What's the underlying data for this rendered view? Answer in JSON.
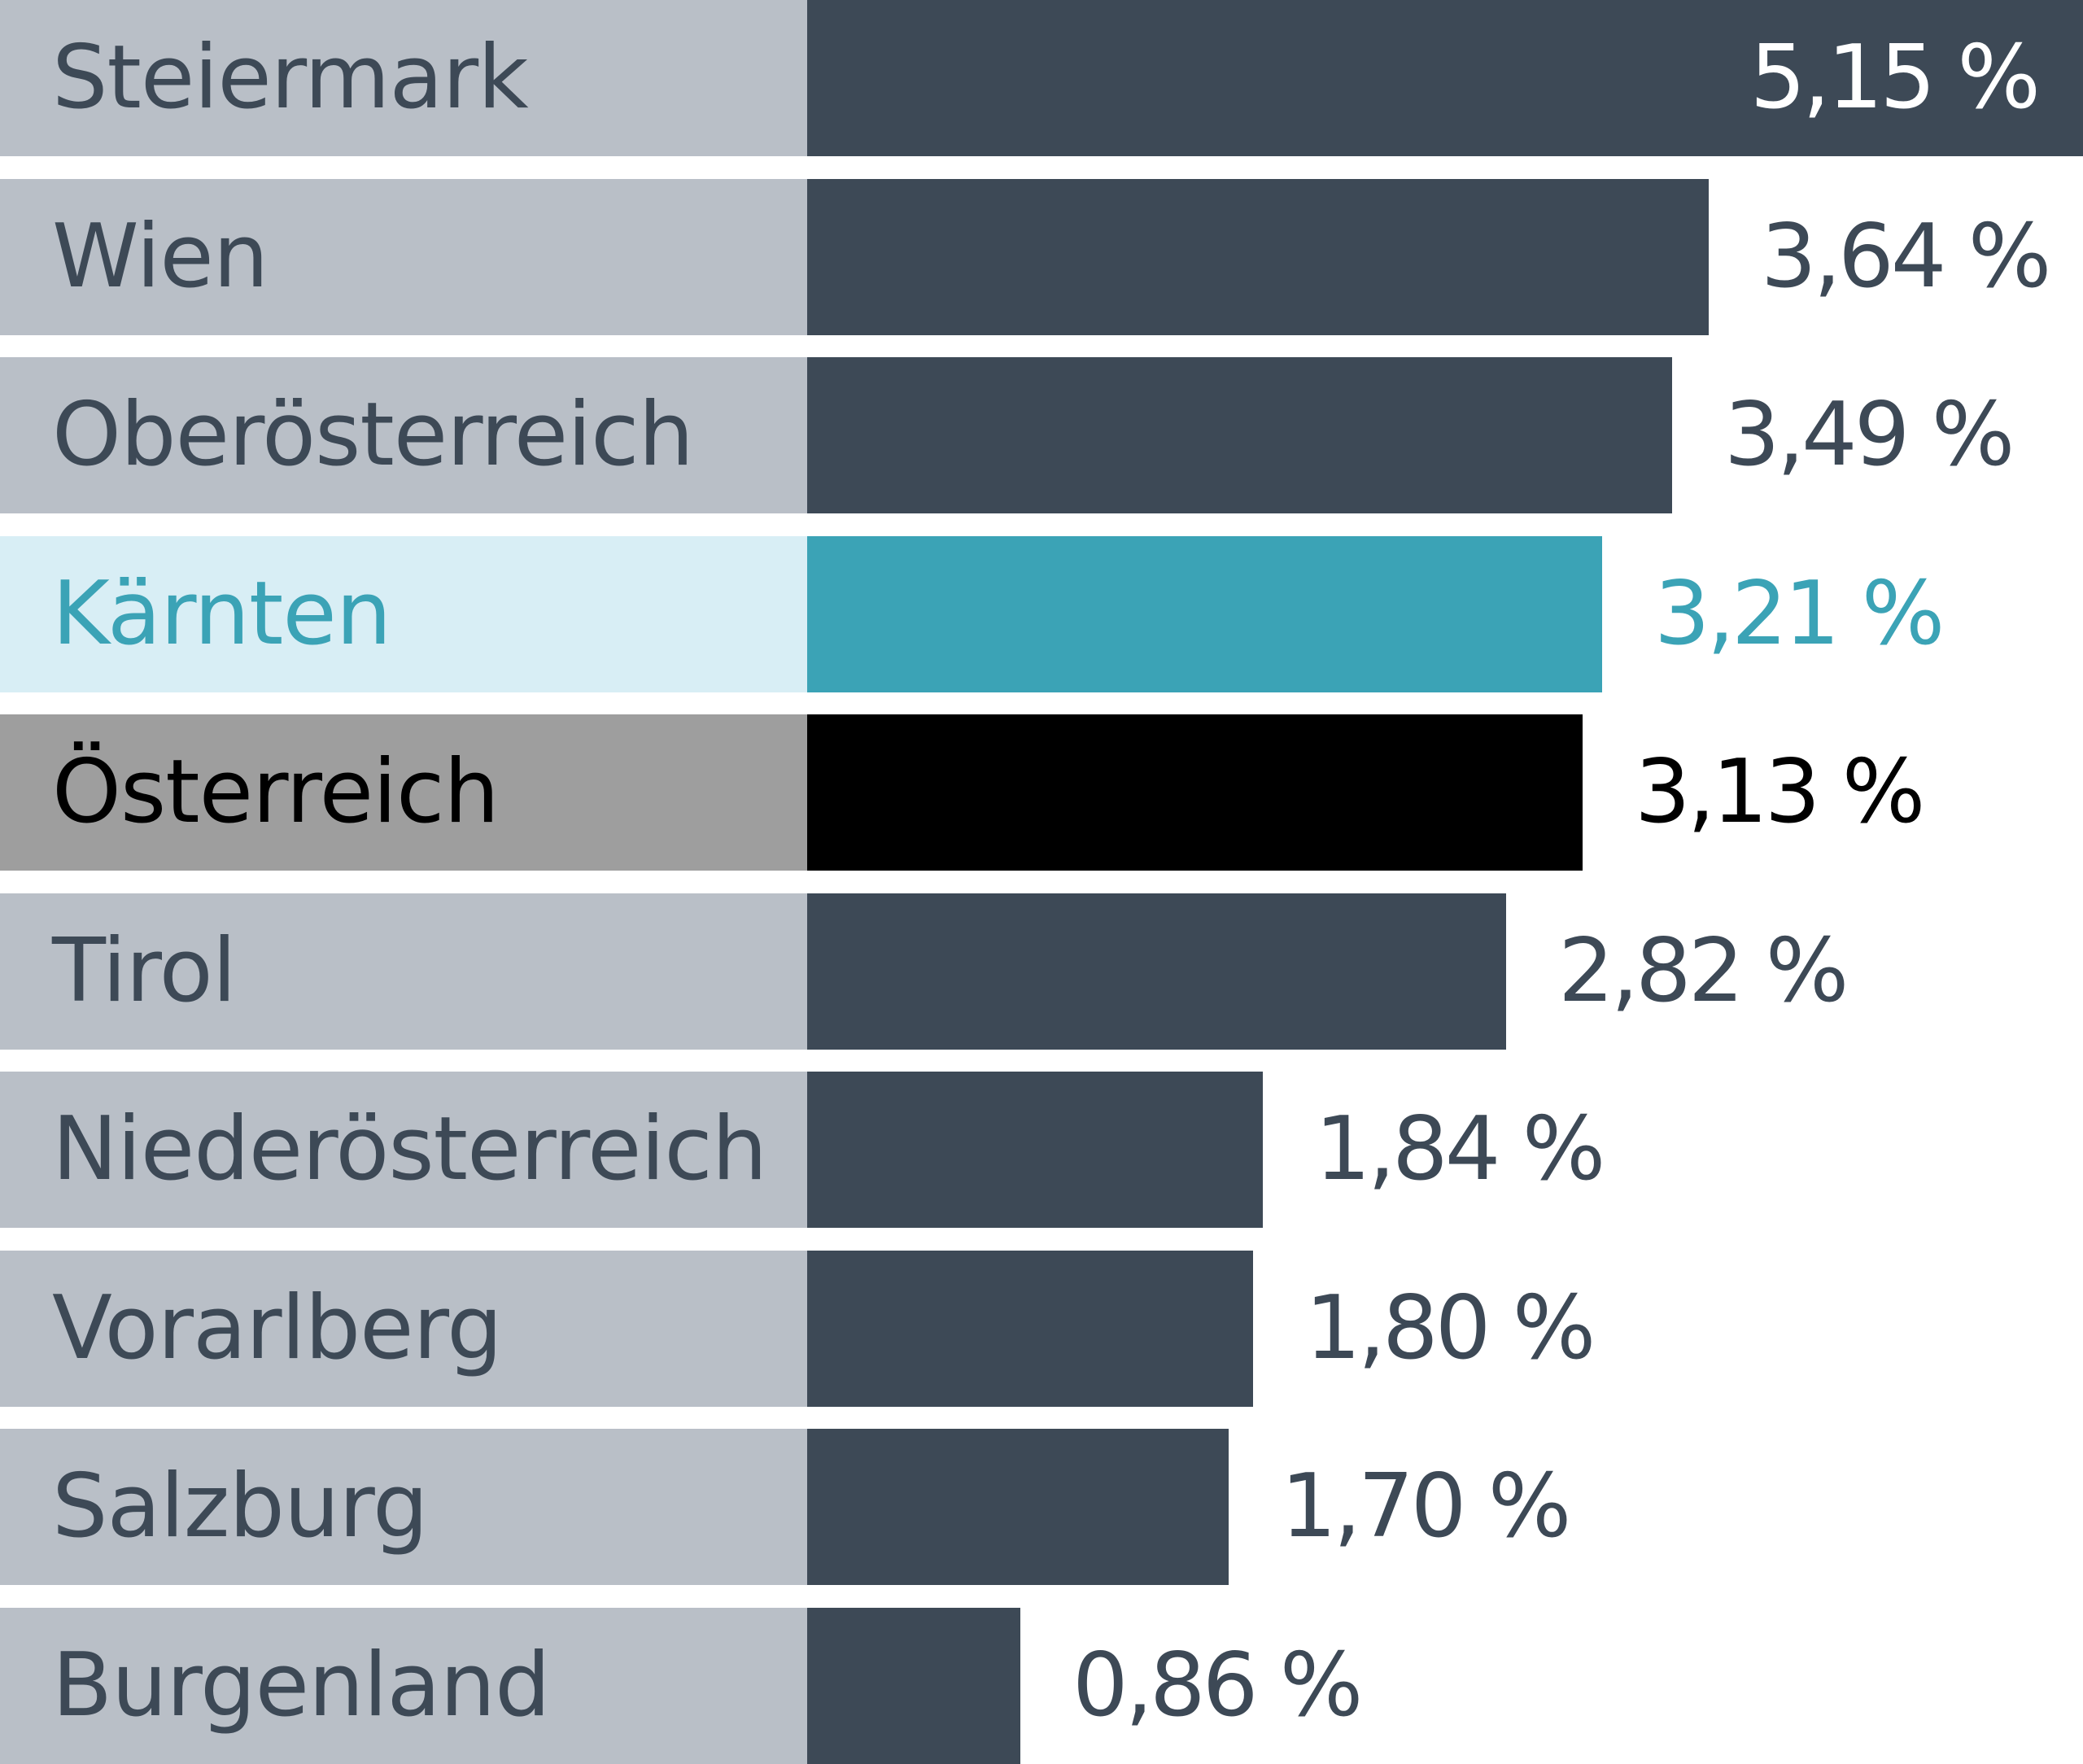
{
  "chart_data": {
    "type": "bar",
    "orientation": "horizontal",
    "categories": [
      "Steiermark",
      "Wien",
      "Oberösterreich",
      "Kärnten",
      "Österreich",
      "Tirol",
      "Niederösterreich",
      "Vorarlberg",
      "Salzburg",
      "Burgenland"
    ],
    "values": [
      5.15,
      3.64,
      3.49,
      3.21,
      3.13,
      2.82,
      1.84,
      1.8,
      1.7,
      0.86
    ],
    "value_labels": [
      "5,15 %",
      "3,64 %",
      "3,49 %",
      "3,21 %",
      "3,13 %",
      "2,82 %",
      "1,84 %",
      "1,80 %",
      "1,70 %",
      "0,86 %"
    ],
    "highlights": {
      "Kärnten": "teal",
      "Österreich": "black"
    },
    "colors": {
      "bar": "#3d4956",
      "label_background": "#b9bfc7",
      "text": "#3d4956",
      "teal": "#3ba3b6",
      "teal_background": "#d8eef5",
      "black": "#000000",
      "black_background": "#9e9e9e",
      "inside_label": "#ffffff"
    },
    "xlim": [
      0,
      5.15
    ],
    "grid": false,
    "legend": "none"
  }
}
